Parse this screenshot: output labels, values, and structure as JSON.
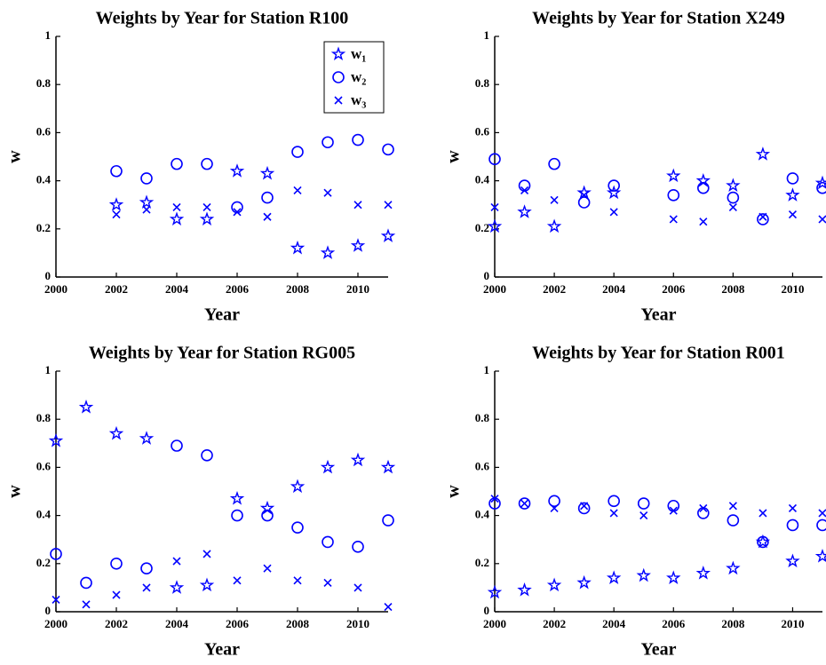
{
  "chart_data": [
    {
      "type": "scatter",
      "title": "Weights by Year for Station R100",
      "xlabel": "Year",
      "ylabel": "w",
      "x": [
        2002,
        2003,
        2004,
        2005,
        2006,
        2007,
        2008,
        2009,
        2010,
        2011
      ],
      "series": [
        {
          "name": "w₁",
          "color": "#0000ff",
          "marker": "star",
          "values": [
            0.3,
            0.31,
            0.24,
            0.24,
            0.44,
            0.43,
            0.12,
            0.1,
            0.13,
            0.17
          ]
        },
        {
          "name": "w₂",
          "color": "#0000ff",
          "marker": "circle",
          "values": [
            0.44,
            0.41,
            0.47,
            0.47,
            0.29,
            0.33,
            0.52,
            0.56,
            0.57,
            0.53
          ]
        },
        {
          "name": "w₃",
          "color": "#0000ff",
          "marker": "x",
          "values": [
            0.26,
            0.28,
            0.29,
            0.29,
            0.27,
            0.25,
            0.36,
            0.35,
            0.3,
            0.3
          ]
        }
      ],
      "xlim": [
        2000,
        2011
      ],
      "xticks": [
        2000,
        2002,
        2004,
        2006,
        2008,
        2010
      ],
      "ylim": [
        0,
        1
      ],
      "yticks": [
        0,
        0.2,
        0.4,
        0.6,
        0.8,
        1
      ],
      "legend": "upper right"
    },
    {
      "type": "scatter",
      "title": "Weights by Year for Station X249",
      "xlabel": "Year",
      "ylabel": "w",
      "x": [
        2000,
        2001,
        2002,
        2003,
        2004,
        2006,
        2007,
        2008,
        2009,
        2010,
        2011
      ],
      "series": [
        {
          "color": "#0000ff",
          "marker": "star",
          "values": [
            0.21,
            0.27,
            0.21,
            0.35,
            0.35,
            0.42,
            0.4,
            0.38,
            0.51,
            0.34,
            0.39
          ]
        },
        {
          "color": "#0000ff",
          "marker": "circle",
          "values": [
            0.49,
            0.38,
            0.47,
            0.31,
            0.38,
            0.34,
            0.37,
            0.33,
            0.24,
            0.41,
            0.37
          ]
        },
        {
          "color": "#0000ff",
          "marker": "x",
          "values": [
            0.29,
            0.36,
            0.32,
            0.34,
            0.27,
            0.24,
            0.23,
            0.29,
            0.25,
            0.26,
            0.24
          ]
        }
      ],
      "xlim": [
        2000,
        2011
      ],
      "xticks": [
        2000,
        2002,
        2004,
        2006,
        2008,
        2010
      ],
      "ylim": [
        0,
        1
      ],
      "yticks": [
        0,
        0.2,
        0.4,
        0.6,
        0.8,
        1
      ]
    },
    {
      "type": "scatter",
      "title": "Weights by Year for Station RG005",
      "xlabel": "Year",
      "ylabel": "w",
      "x": [
        2000,
        2001,
        2002,
        2003,
        2004,
        2005,
        2006,
        2007,
        2008,
        2009,
        2010,
        2011
      ],
      "series": [
        {
          "color": "#0000ff",
          "marker": "star",
          "values": [
            0.71,
            0.85,
            0.74,
            0.72,
            0.1,
            0.11,
            0.47,
            0.43,
            0.52,
            0.6,
            0.63,
            0.6
          ]
        },
        {
          "color": "#0000ff",
          "marker": "circle",
          "values": [
            0.24,
            0.12,
            0.2,
            0.18,
            0.69,
            0.65,
            0.4,
            0.4,
            0.35,
            0.29,
            0.27,
            0.38
          ]
        },
        {
          "color": "#0000ff",
          "marker": "x",
          "values": [
            0.05,
            0.03,
            0.07,
            0.1,
            0.21,
            0.24,
            0.13,
            0.18,
            0.13,
            0.12,
            0.1,
            0.02
          ]
        }
      ],
      "xlim": [
        2000,
        2011
      ],
      "xticks": [
        2000,
        2002,
        2004,
        2006,
        2008,
        2010
      ],
      "ylim": [
        0,
        1
      ],
      "yticks": [
        0,
        0.2,
        0.4,
        0.6,
        0.8,
        1
      ]
    },
    {
      "type": "scatter",
      "title": "Weights by Year for Station R001",
      "xlabel": "Year",
      "ylabel": "w",
      "x": [
        2000,
        2001,
        2002,
        2003,
        2004,
        2005,
        2006,
        2007,
        2008,
        2009,
        2010,
        2011
      ],
      "series": [
        {
          "color": "#0000ff",
          "marker": "star",
          "values": [
            0.08,
            0.09,
            0.11,
            0.12,
            0.14,
            0.15,
            0.14,
            0.16,
            0.18,
            0.29,
            0.21,
            0.23
          ]
        },
        {
          "color": "#0000ff",
          "marker": "circle",
          "values": [
            0.45,
            0.45,
            0.46,
            0.43,
            0.46,
            0.45,
            0.44,
            0.41,
            0.38,
            0.29,
            0.36,
            0.36
          ]
        },
        {
          "color": "#0000ff",
          "marker": "x",
          "values": [
            0.47,
            0.45,
            0.43,
            0.44,
            0.41,
            0.4,
            0.42,
            0.43,
            0.44,
            0.41,
            0.43,
            0.41
          ]
        }
      ],
      "xlim": [
        2000,
        2011
      ],
      "xticks": [
        2000,
        2002,
        2004,
        2006,
        2008,
        2010
      ],
      "ylim": [
        0,
        1
      ],
      "yticks": [
        0,
        0.2,
        0.4,
        0.6,
        0.8,
        1
      ]
    }
  ]
}
